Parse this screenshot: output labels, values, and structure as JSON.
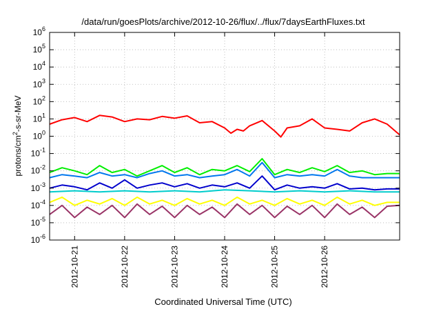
{
  "chart_data": {
    "type": "line",
    "title": "/data/run/goesPlots/archive/2012-10-26/flux/../flux/7daysEarthFluxes.txt",
    "xlabel": "Coordinated Universal Time (UTC)",
    "ylabel": {
      "base": "protons/cm",
      "sup": "2",
      "rest": "-s-sr-MeV"
    },
    "yscale": "log",
    "ylim_exp": [
      -6,
      6
    ],
    "y_ticks": [
      {
        "base": "10",
        "exp": "6",
        "v": 6
      },
      {
        "base": "10",
        "exp": "5",
        "v": 5
      },
      {
        "base": "10",
        "exp": "4",
        "v": 4
      },
      {
        "base": "10",
        "exp": "3",
        "v": 3
      },
      {
        "base": "10",
        "exp": "2",
        "v": 2
      },
      {
        "base": "10",
        "exp": "1",
        "v": 1
      },
      {
        "base": "10",
        "exp": "0",
        "v": 0
      },
      {
        "base": "10",
        "exp": "-1",
        "v": -1
      },
      {
        "base": "10",
        "exp": "-2",
        "v": -2
      },
      {
        "base": "10",
        "exp": "-3",
        "v": -3
      },
      {
        "base": "10",
        "exp": "-4",
        "v": -4
      },
      {
        "base": "10",
        "exp": "-5",
        "v": -5
      },
      {
        "base": "10",
        "exp": "-6",
        "v": -6
      }
    ],
    "xlim": [
      "2012-10-20T12:00",
      "2012-10-27T12:00"
    ],
    "x_ticks": [
      "2012-10-21",
      "2012-10-22",
      "2012-10-23",
      "2012-10-24",
      "2012-10-25",
      "2012-10-26"
    ],
    "grid": true,
    "legend": "none",
    "series": [
      {
        "color": "#ff0000",
        "x": [
          "2012-10-20T12:00",
          "2012-10-20T18:00",
          "2012-10-21T00:00",
          "2012-10-21T06:00",
          "2012-10-21T12:00",
          "2012-10-21T18:00",
          "2012-10-22T00:00",
          "2012-10-22T06:00",
          "2012-10-22T12:00",
          "2012-10-22T18:00",
          "2012-10-23T00:00",
          "2012-10-23T06:00",
          "2012-10-23T12:00",
          "2012-10-23T18:00",
          "2012-10-24T00:00",
          "2012-10-24T03:00",
          "2012-10-24T06:00",
          "2012-10-24T09:00",
          "2012-10-24T12:00",
          "2012-10-24T18:00",
          "2012-10-25T00:00",
          "2012-10-25T03:00",
          "2012-10-25T06:00",
          "2012-10-25T12:00",
          "2012-10-25T18:00",
          "2012-10-26T00:00",
          "2012-10-26T06:00",
          "2012-10-26T12:00",
          "2012-10-26T18:00",
          "2012-10-27T00:00",
          "2012-10-27T06:00",
          "2012-10-27T12:00"
        ],
        "y": [
          5,
          9,
          12,
          7,
          16,
          13,
          7,
          10,
          9,
          14,
          11,
          15,
          6,
          7,
          3,
          1.5,
          2.5,
          2,
          4,
          8,
          2,
          0.9,
          3,
          4,
          10,
          3,
          2.5,
          2,
          6,
          10,
          5,
          1.2
        ]
      },
      {
        "color": "#00ee00",
        "x": [
          "2012-10-20T12:00",
          "2012-10-20T18:00",
          "2012-10-21T00:00",
          "2012-10-21T06:00",
          "2012-10-21T12:00",
          "2012-10-21T18:00",
          "2012-10-22T00:00",
          "2012-10-22T06:00",
          "2012-10-22T12:00",
          "2012-10-22T18:00",
          "2012-10-23T00:00",
          "2012-10-23T06:00",
          "2012-10-23T12:00",
          "2012-10-23T18:00",
          "2012-10-24T00:00",
          "2012-10-24T06:00",
          "2012-10-24T12:00",
          "2012-10-24T18:00",
          "2012-10-25T00:00",
          "2012-10-25T06:00",
          "2012-10-25T12:00",
          "2012-10-25T18:00",
          "2012-10-26T00:00",
          "2012-10-26T06:00",
          "2012-10-26T12:00",
          "2012-10-26T18:00",
          "2012-10-27T00:00",
          "2012-10-27T06:00",
          "2012-10-27T12:00"
        ],
        "y": [
          0.008,
          0.015,
          0.01,
          0.006,
          0.02,
          0.008,
          0.012,
          0.005,
          0.01,
          0.02,
          0.008,
          0.015,
          0.006,
          0.012,
          0.01,
          0.02,
          0.009,
          0.05,
          0.006,
          0.012,
          0.008,
          0.015,
          0.009,
          0.02,
          0.008,
          0.01,
          0.006,
          0.007,
          0.007
        ]
      },
      {
        "color": "#0077ee",
        "x": [
          "2012-10-20T12:00",
          "2012-10-20T18:00",
          "2012-10-21T00:00",
          "2012-10-21T06:00",
          "2012-10-21T12:00",
          "2012-10-21T18:00",
          "2012-10-22T00:00",
          "2012-10-22T06:00",
          "2012-10-22T12:00",
          "2012-10-22T18:00",
          "2012-10-23T00:00",
          "2012-10-23T06:00",
          "2012-10-23T12:00",
          "2012-10-23T18:00",
          "2012-10-24T00:00",
          "2012-10-24T06:00",
          "2012-10-24T12:00",
          "2012-10-24T18:00",
          "2012-10-25T00:00",
          "2012-10-25T06:00",
          "2012-10-25T12:00",
          "2012-10-25T18:00",
          "2012-10-26T00:00",
          "2012-10-26T06:00",
          "2012-10-26T12:00",
          "2012-10-26T18:00",
          "2012-10-27T00:00",
          "2012-10-27T06:00",
          "2012-10-27T12:00"
        ],
        "y": [
          0.004,
          0.006,
          0.005,
          0.004,
          0.008,
          0.005,
          0.006,
          0.004,
          0.007,
          0.01,
          0.005,
          0.006,
          0.004,
          0.005,
          0.006,
          0.012,
          0.005,
          0.03,
          0.004,
          0.006,
          0.005,
          0.006,
          0.005,
          0.012,
          0.005,
          0.004,
          0.004,
          0.004,
          0.004
        ]
      },
      {
        "color": "#0000cc",
        "x": [
          "2012-10-20T12:00",
          "2012-10-20T18:00",
          "2012-10-21T00:00",
          "2012-10-21T06:00",
          "2012-10-21T12:00",
          "2012-10-21T18:00",
          "2012-10-22T00:00",
          "2012-10-22T06:00",
          "2012-10-22T12:00",
          "2012-10-22T18:00",
          "2012-10-23T00:00",
          "2012-10-23T06:00",
          "2012-10-23T12:00",
          "2012-10-23T18:00",
          "2012-10-24T00:00",
          "2012-10-24T06:00",
          "2012-10-24T12:00",
          "2012-10-24T18:00",
          "2012-10-25T00:00",
          "2012-10-25T06:00",
          "2012-10-25T12:00",
          "2012-10-25T18:00",
          "2012-10-26T00:00",
          "2012-10-26T06:00",
          "2012-10-26T12:00",
          "2012-10-26T18:00",
          "2012-10-27T00:00",
          "2012-10-27T06:00",
          "2012-10-27T12:00"
        ],
        "y": [
          0.001,
          0.0015,
          0.0012,
          0.0008,
          0.002,
          0.001,
          0.003,
          0.001,
          0.0015,
          0.002,
          0.0012,
          0.0018,
          0.001,
          0.0015,
          0.0012,
          0.002,
          0.001,
          0.005,
          0.0008,
          0.0015,
          0.001,
          0.0012,
          0.001,
          0.0018,
          0.0009,
          0.001,
          0.0008,
          0.0009,
          0.0009
        ]
      },
      {
        "color": "#00cccc",
        "x": [
          "2012-10-20T12:00",
          "2012-10-21T00:00",
          "2012-10-21T12:00",
          "2012-10-22T00:00",
          "2012-10-22T12:00",
          "2012-10-23T00:00",
          "2012-10-23T12:00",
          "2012-10-24T00:00",
          "2012-10-24T12:00",
          "2012-10-25T00:00",
          "2012-10-25T12:00",
          "2012-10-26T00:00",
          "2012-10-26T12:00",
          "2012-10-27T00:00",
          "2012-10-27T12:00"
        ],
        "y": [
          0.0006,
          0.0007,
          0.0006,
          0.0007,
          0.0006,
          0.0007,
          0.0006,
          0.0008,
          0.0007,
          0.0006,
          0.0007,
          0.0006,
          0.0007,
          0.0006,
          0.0006
        ]
      },
      {
        "color": "#ffff00",
        "x": [
          "2012-10-20T12:00",
          "2012-10-20T18:00",
          "2012-10-21T00:00",
          "2012-10-21T06:00",
          "2012-10-21T12:00",
          "2012-10-21T18:00",
          "2012-10-22T00:00",
          "2012-10-22T06:00",
          "2012-10-22T12:00",
          "2012-10-22T18:00",
          "2012-10-23T00:00",
          "2012-10-23T06:00",
          "2012-10-23T12:00",
          "2012-10-23T18:00",
          "2012-10-24T00:00",
          "2012-10-24T06:00",
          "2012-10-24T12:00",
          "2012-10-24T18:00",
          "2012-10-25T00:00",
          "2012-10-25T06:00",
          "2012-10-25T12:00",
          "2012-10-25T18:00",
          "2012-10-26T00:00",
          "2012-10-26T06:00",
          "2012-10-26T12:00",
          "2012-10-26T18:00",
          "2012-10-27T00:00",
          "2012-10-27T06:00",
          "2012-10-27T12:00"
        ],
        "y": [
          0.00015,
          0.0003,
          0.0001,
          0.0002,
          0.00012,
          0.00025,
          0.0001,
          0.0003,
          0.00012,
          0.0002,
          0.0001,
          0.00025,
          0.00012,
          0.0002,
          0.0001,
          0.0003,
          0.00012,
          0.0002,
          0.0001,
          0.00025,
          0.00012,
          0.0002,
          0.0001,
          0.0003,
          0.00012,
          0.0002,
          0.0001,
          0.00015,
          0.00015
        ]
      },
      {
        "color": "#993366",
        "x": [
          "2012-10-20T12:00",
          "2012-10-20T18:00",
          "2012-10-21T00:00",
          "2012-10-21T06:00",
          "2012-10-21T12:00",
          "2012-10-21T18:00",
          "2012-10-22T00:00",
          "2012-10-22T06:00",
          "2012-10-22T12:00",
          "2012-10-22T18:00",
          "2012-10-23T00:00",
          "2012-10-23T06:00",
          "2012-10-23T12:00",
          "2012-10-23T18:00",
          "2012-10-24T00:00",
          "2012-10-24T06:00",
          "2012-10-24T12:00",
          "2012-10-24T18:00",
          "2012-10-25T00:00",
          "2012-10-25T06:00",
          "2012-10-25T12:00",
          "2012-10-25T18:00",
          "2012-10-26T00:00",
          "2012-10-26T06:00",
          "2012-10-26T12:00",
          "2012-10-26T18:00",
          "2012-10-27T00:00",
          "2012-10-27T06:00",
          "2012-10-27T12:00"
        ],
        "y": [
          3e-05,
          0.0001,
          2e-05,
          8e-05,
          3e-05,
          0.0001,
          2e-05,
          0.00012,
          3e-05,
          9e-05,
          2e-05,
          0.0001,
          3e-05,
          8e-05,
          2e-05,
          0.00012,
          3e-05,
          0.0001,
          2e-05,
          9e-05,
          3e-05,
          0.0001,
          2e-05,
          0.00012,
          3e-05,
          8e-05,
          2e-05,
          9e-05,
          0.0001
        ]
      }
    ]
  }
}
